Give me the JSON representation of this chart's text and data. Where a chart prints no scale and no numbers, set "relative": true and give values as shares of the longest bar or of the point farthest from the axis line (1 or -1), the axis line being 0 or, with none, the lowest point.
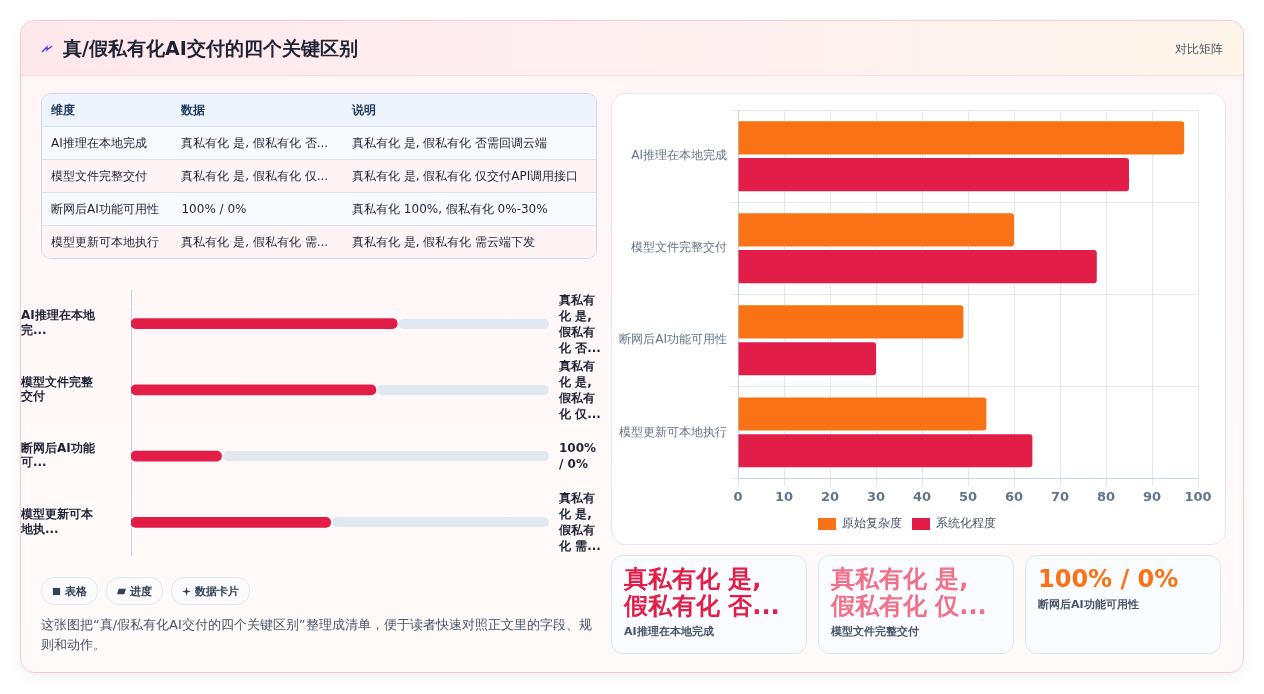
{
  "chart_data": [
    {
      "type": "other",
      "title": "真/假私有化AI交付的四个关键区别",
      "subtitle": "对比矩阵",
      "categories": [
        "维度",
        "数据",
        "说明"
      ],
      "annotations": [
        "AI推理在本地完成",
        "真私有化 是, 假私有化 否...",
        "真私有化 是, 假私有化 否需回调云端",
        "模型文件完整交付",
        "真私有化 是, 假私有化 仅...",
        "真私有化 是, 假私有化 仅交付API调用接口",
        "断网后AI功能可用性",
        "100% / 0%",
        "真私有化 100%, 假私有化 0%-30%",
        "模型更新可本地执行",
        "真私有化 是, 假私有化 需...",
        "真私有化 是, 假私有化 需云端下发"
      ]
    },
    {
      "type": "bar",
      "orientation": "horizontal",
      "relative": true,
      "categories": [
        "AI推理在本地完...",
        "模型文件完整交付",
        "断网后AI功能可...",
        "模型更新可本地执..."
      ],
      "color": "#e11d48",
      "values": [
        1,
        0.92,
        0.34,
        0.75
      ],
      "annotations": [
        "真私有化 是, 假私有化 否...",
        "真私有化 是, 假私有化 仅...",
        "100% / 0%",
        "真私有化 是, 假私有化 需..."
      ]
    },
    {
      "type": "other",
      "annotations": [
        "表格",
        "进度",
        "数据卡片",
        "这张图把“真/假私有化AI交付的四个关键区别”整理成清单，便于读者快速对照正文里的字段、规则和动作。"
      ]
    },
    {
      "type": "bar",
      "orientation": "horizontal",
      "categories": [
        "AI推理在本地完成",
        "模型文件完整交付",
        "断网后AI功能可用性",
        "模型更新可本地执行"
      ],
      "series": [
        {
          "name": "原始复杂度",
          "color": "#f97316",
          "values": [
            97,
            60,
            49,
            54
          ]
        },
        {
          "name": "系统化程度",
          "color": "#e11d48",
          "values": [
            85,
            78,
            30,
            64
          ]
        }
      ],
      "xlim": [
        0,
        100
      ],
      "xticks": [
        0,
        10,
        20,
        30,
        40,
        50,
        60,
        70,
        80,
        90,
        100
      ],
      "grid": true,
      "legend": "bottom"
    },
    {
      "type": "other",
      "categories": [
        "真私有化 是, 假私有化 否...",
        "真私有化 是, 假私有化 仅...",
        "100% / 0%"
      ],
      "annotations": [
        "AI推理在本地完成",
        "模型文件完整交付",
        "断网后AI功能可用性"
      ]
    }
  ]
}
